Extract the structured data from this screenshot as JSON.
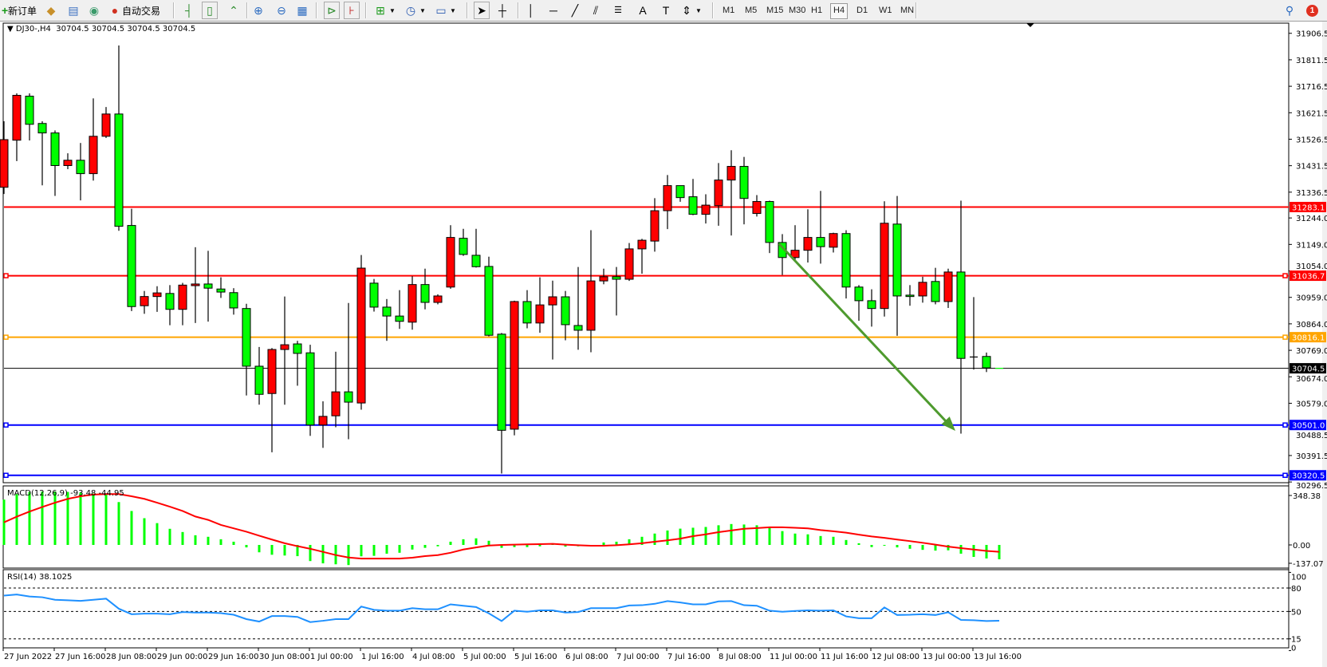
{
  "toolbar": {
    "new_order_label": "新订单",
    "auto_trading_label": "自动交易",
    "timeframes": [
      "M1",
      "M5",
      "M15",
      "M30",
      "H1",
      "H4",
      "D1",
      "W1",
      "MN"
    ],
    "selected_timeframe": "H4",
    "notification_count": "1",
    "icons": [
      "new-order-icon",
      "metaeditor-icon",
      "market-watch-icon",
      "signals-icon",
      "auto-trading-icon",
      "bar-chart-icon",
      "candlestick-icon",
      "line-chart-icon",
      "zoom-in-icon",
      "zoom-out-icon",
      "tile-windows-icon",
      "auto-scroll-icon",
      "chart-shift-icon",
      "indicators-icon",
      "periods-icon",
      "templates-icon",
      "cursor-icon",
      "crosshair-icon",
      "vertical-line-icon",
      "horizontal-line-icon",
      "trendline-icon",
      "equidistant-channel-icon",
      "fibonacci-icon",
      "text-icon",
      "text-label-icon",
      "arrows-icon",
      "search-icon",
      "notifications-icon"
    ]
  },
  "chart": {
    "header_symbol": "DJ30-,H4",
    "header_ohlc": "30704.5 30704.5 30704.5 30704.5",
    "price_ticks": [
      "31906.5",
      "31811.5",
      "31716.5",
      "31621.5",
      "31526.5",
      "31431.5",
      "31336.5",
      "31244.0",
      "31149.0",
      "31054.0",
      "30959.0",
      "30864.0",
      "30769.0",
      "30674.0",
      "30579.0",
      "30488.5",
      "30391.5",
      "30296.5"
    ],
    "hlines": [
      {
        "value": "31283.1",
        "color": "#ff0000",
        "marker": false
      },
      {
        "value": "31036.7",
        "color": "#ff0000",
        "marker": true
      },
      {
        "value": "30816.1",
        "color": "#ffa500",
        "marker": true
      },
      {
        "value": "30704.5",
        "color": "#000000",
        "marker": false,
        "bid": true
      },
      {
        "value": "30501.0",
        "color": "#0000ff",
        "marker": true
      },
      {
        "value": "30320.5",
        "color": "#0000ff",
        "marker": true
      }
    ],
    "trend_arrow": {
      "from_price": 31151,
      "to_price": 30480,
      "color": "#4e9a2e"
    },
    "time_labels": [
      "27 Jun 2022",
      "27 Jun 16:00",
      "28 Jun 08:00",
      "29 Jun 00:00",
      "29 Jun 16:00",
      "30 Jun 08:00",
      "1 Jul 00:00",
      "1 Jul 16:00",
      "4 Jul 08:00",
      "5 Jul 00:00",
      "5 Jul 16:00",
      "6 Jul 08:00",
      "7 Jul 00:00",
      "7 Jul 16:00",
      "8 Jul 08:00",
      "11 Jul 00:00",
      "11 Jul 16:00",
      "12 Jul 08:00",
      "13 Jul 00:00",
      "13 Jul 16:00"
    ],
    "colors": {
      "bull": "#ff0000",
      "bear": "#00ff00",
      "wick": "#000000",
      "macd_hist": "#00ff00",
      "macd_signal": "#ff0000",
      "rsi": "#1e90ff"
    }
  },
  "macd": {
    "label": "MACD(12,26,9) -93.48 -44.95",
    "ticks": [
      "348.38",
      "0.00",
      "-137.07"
    ]
  },
  "rsi": {
    "label": "RSI(14) 38.1025",
    "ticks": [
      "100",
      "80",
      "50",
      "15",
      "0"
    ]
  },
  "chart_data": {
    "type": "candlestick",
    "symbol": "DJ30-",
    "timeframe": "H4",
    "ylim": [
      30296.5,
      31906.5
    ],
    "ohlc": [
      [
        31354,
        31591,
        31330,
        31525
      ],
      [
        31523,
        31691,
        31448,
        31684
      ],
      [
        31681,
        31691,
        31522,
        31580
      ],
      [
        31583,
        31591,
        31361,
        31549
      ],
      [
        31549,
        31558,
        31323,
        31432
      ],
      [
        31432,
        31476,
        31419,
        31451
      ],
      [
        31451,
        31513,
        31307,
        31403
      ],
      [
        31403,
        31673,
        31378,
        31537
      ],
      [
        31537,
        31642,
        31531,
        31617
      ],
      [
        31617,
        31863,
        31198,
        31214
      ],
      [
        31217,
        31277,
        30910,
        30926
      ],
      [
        30929,
        30982,
        30900,
        30962
      ],
      [
        30962,
        30999,
        30907,
        30975
      ],
      [
        30973,
        31003,
        30859,
        30916
      ],
      [
        30916,
        31011,
        30859,
        31003
      ],
      [
        31001,
        31139,
        30867,
        31007
      ],
      [
        31007,
        31126,
        30872,
        30992
      ],
      [
        30989,
        31031,
        30957,
        30978
      ],
      [
        30976,
        30992,
        30897,
        30921
      ],
      [
        30919,
        30936,
        30607,
        30712
      ],
      [
        30712,
        30781,
        30574,
        30611
      ],
      [
        30614,
        30777,
        30403,
        30772
      ],
      [
        30772,
        30962,
        30574,
        30789
      ],
      [
        30792,
        30803,
        30642,
        30758
      ],
      [
        30760,
        30789,
        30462,
        30501
      ],
      [
        30501,
        30586,
        30419,
        30532
      ],
      [
        30534,
        30764,
        30493,
        30620
      ],
      [
        30620,
        30939,
        30450,
        30583
      ],
      [
        30580,
        31111,
        30556,
        31064
      ],
      [
        31010,
        31025,
        30908,
        30924
      ],
      [
        30924,
        30953,
        30803,
        30892
      ],
      [
        30892,
        30985,
        30846,
        30873
      ],
      [
        30870,
        31035,
        30843,
        31005
      ],
      [
        31005,
        31062,
        30916,
        30941
      ],
      [
        30941,
        30970,
        30934,
        30964
      ],
      [
        30996,
        31218,
        30990,
        31174
      ],
      [
        31171,
        31205,
        31108,
        31113
      ],
      [
        31110,
        31205,
        31066,
        31069
      ],
      [
        31070,
        31105,
        30819,
        30823
      ],
      [
        30827,
        30831,
        30327,
        30482
      ],
      [
        30486,
        30947,
        30464,
        30944
      ],
      [
        30944,
        30985,
        30848,
        30867
      ],
      [
        30867,
        31031,
        30832,
        30932
      ],
      [
        30932,
        31019,
        30736,
        30961
      ],
      [
        30961,
        30982,
        30805,
        30861
      ],
      [
        30858,
        31068,
        30771,
        30841
      ],
      [
        30841,
        31200,
        30762,
        31018
      ],
      [
        31018,
        31062,
        31006,
        31033
      ],
      [
        31033,
        31068,
        30894,
        31024
      ],
      [
        31024,
        31154,
        31018,
        31133
      ],
      [
        31133,
        31169,
        31044,
        31164
      ],
      [
        31161,
        31315,
        31123,
        31270
      ],
      [
        31270,
        31398,
        31204,
        31360
      ],
      [
        31360,
        31360,
        31302,
        31317
      ],
      [
        31320,
        31384,
        31254,
        31257
      ],
      [
        31257,
        31329,
        31224,
        31290
      ],
      [
        31288,
        31441,
        31216,
        31380
      ],
      [
        31380,
        31487,
        31181,
        31429
      ],
      [
        31429,
        31463,
        31221,
        31314
      ],
      [
        31260,
        31326,
        31249,
        31303
      ],
      [
        31303,
        31306,
        31118,
        31156
      ],
      [
        31156,
        31186,
        31039,
        31102
      ],
      [
        31102,
        31218,
        31089,
        31128
      ],
      [
        31128,
        31275,
        31084,
        31174
      ],
      [
        31174,
        31341,
        31080,
        31141
      ],
      [
        31139,
        31191,
        31120,
        31188
      ],
      [
        31188,
        31200,
        30955,
        30996
      ],
      [
        30996,
        31003,
        30875,
        30947
      ],
      [
        30947,
        30988,
        30854,
        30919
      ],
      [
        30919,
        31304,
        30890,
        31225
      ],
      [
        31222,
        31323,
        30821,
        30964
      ],
      [
        30967,
        31003,
        30929,
        30962
      ],
      [
        30964,
        31033,
        30940,
        31013
      ],
      [
        31016,
        31065,
        30934,
        30944
      ],
      [
        30944,
        31062,
        30921,
        31050
      ],
      [
        31050,
        31306,
        30470,
        30740
      ],
      [
        30745,
        30960,
        30700,
        30745
      ],
      [
        30747,
        30761,
        30691,
        30706
      ],
      [
        30704.5,
        30704.5,
        30704.5,
        30704.5
      ]
    ],
    "macd_histogram": [
      295,
      330,
      345,
      348,
      348,
      345,
      340,
      335,
      330,
      279,
      221,
      174,
      142,
      105,
      84,
      63,
      53,
      37,
      21,
      -16,
      -48,
      -64,
      -69,
      -73,
      -105,
      -120,
      -126,
      -131,
      -74,
      -71,
      -57,
      -51,
      -30,
      -19,
      -9,
      21,
      37,
      43,
      27,
      -19,
      -14,
      -14,
      -9,
      9,
      -11,
      -9,
      -3,
      16,
      21,
      37,
      53,
      74,
      94,
      106,
      112,
      117,
      128,
      136,
      133,
      128,
      117,
      90,
      74,
      69,
      58,
      53,
      32,
      11,
      -14,
      -4,
      -16,
      -25,
      -32,
      -37,
      -35,
      -57,
      -78,
      -88,
      -93.48
    ],
    "macd_signal": [
      147,
      184,
      217,
      247,
      275,
      300,
      317,
      328,
      331,
      331,
      317,
      300,
      275,
      249,
      221,
      185,
      163,
      130,
      108,
      86,
      60,
      35,
      11,
      -8,
      -25,
      -45,
      -66,
      -82,
      -89,
      -89,
      -89,
      -89,
      -83,
      -73,
      -66,
      -51,
      -30,
      -16,
      -4,
      0,
      2,
      4,
      5,
      7,
      2,
      -2,
      -5,
      -5,
      -2,
      4,
      11,
      21,
      30,
      41,
      57,
      69,
      83,
      94,
      105,
      110,
      115,
      115,
      112,
      108,
      97,
      89,
      80,
      67,
      55,
      46,
      35,
      25,
      14,
      2,
      -11,
      -21,
      -30,
      -39,
      -44.95
    ],
    "macd_ylim": [
      -137.07,
      348.38
    ],
    "rsi": [
      70.3,
      71.7,
      69.2,
      68.2,
      65,
      64.3,
      63.6,
      65,
      66.4,
      53.5,
      46.5,
      47.2,
      47.2,
      46.5,
      49.3,
      48.6,
      48.6,
      47.9,
      45.8,
      40.2,
      37.1,
      44.1,
      44.1,
      43,
      36.4,
      38.1,
      40.2,
      40.2,
      56.3,
      52.1,
      51,
      51,
      54.2,
      52.8,
      52.8,
      59.1,
      57.3,
      55.6,
      47.6,
      37.8,
      51,
      49.7,
      51.4,
      51.4,
      48.6,
      49.3,
      54.2,
      54.2,
      54.2,
      57.7,
      58,
      59.8,
      63.3,
      61.5,
      59.1,
      59.1,
      62.9,
      63.3,
      58,
      57.3,
      51,
      49.7,
      50.7,
      51.4,
      51,
      51.4,
      43.7,
      41.3,
      41.3,
      55.2,
      45.5,
      45.8,
      46.5,
      45.5,
      49,
      39.2,
      38.8,
      37.8,
      38.1025
    ],
    "rsi_levels": [
      80,
      50,
      15
    ],
    "rsi_ylim": [
      0,
      100
    ]
  }
}
